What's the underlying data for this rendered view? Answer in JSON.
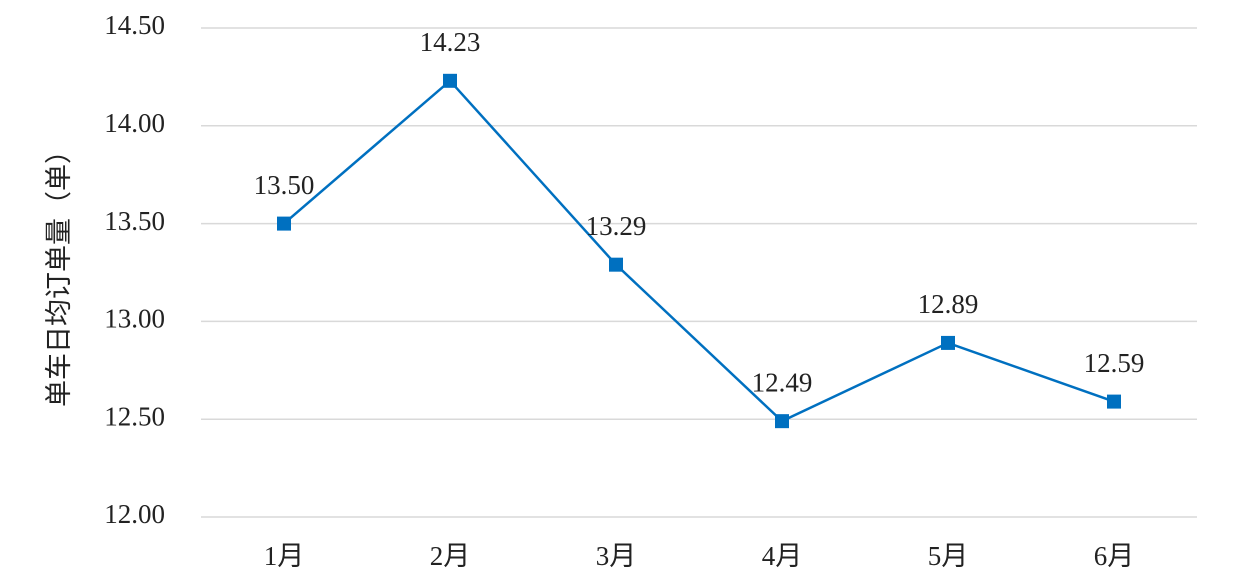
{
  "chart_data": {
    "type": "line",
    "y_label": "单车日均订单量（单）",
    "categories": [
      "1月",
      "2月",
      "3月",
      "4月",
      "5月",
      "6月"
    ],
    "values": [
      13.5,
      14.23,
      13.29,
      12.49,
      12.89,
      12.59
    ],
    "value_labels": [
      "13.50",
      "14.23",
      "13.29",
      "12.49",
      "12.89",
      "12.59"
    ],
    "color": "#0070c0",
    "ylim": [
      12,
      14.5
    ],
    "yticks": [
      {
        "value": 12,
        "label": "12.00"
      },
      {
        "value": 12.5,
        "label": "12.50"
      },
      {
        "value": 13,
        "label": "13.00"
      },
      {
        "value": 13.5,
        "label": "13.50"
      },
      {
        "value": 14,
        "label": "14.00"
      },
      {
        "value": 14.5,
        "label": "14.50"
      }
    ],
    "grid": true
  }
}
